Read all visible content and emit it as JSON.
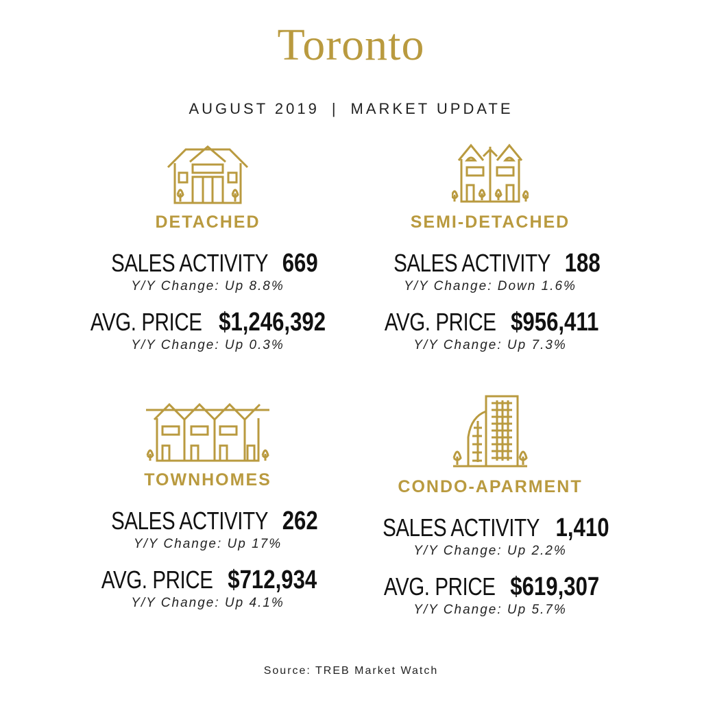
{
  "title": "Toronto",
  "subtitle": {
    "left": "AUGUST 2019",
    "separator": "|",
    "right": "MARKET UPDATE"
  },
  "accent_color": "#b99a3f",
  "sections": [
    {
      "icon": "detached-house-icon",
      "category": "DETACHED",
      "sales_label": "SALES ACTIVITY",
      "sales_value": "669",
      "sales_change": "Y/Y Change: Up 8.8%",
      "price_label": "AVG. PRICE",
      "price_value": "$1,246,392",
      "price_change": "Y/Y Change: Up 0.3%"
    },
    {
      "icon": "semi-detached-house-icon",
      "category": "SEMI-DETACHED",
      "sales_label": "SALES ACTIVITY",
      "sales_value": "188",
      "sales_change": "Y/Y Change: Down 1.6%",
      "price_label": "AVG. PRICE",
      "price_value": "$956,411",
      "price_change": "Y/Y Change: Up 7.3%"
    },
    {
      "icon": "townhomes-icon",
      "category": "TOWNHOMES",
      "sales_label": "SALES ACTIVITY",
      "sales_value": "262",
      "sales_change": "Y/Y Change: Up 17%",
      "price_label": "AVG. PRICE",
      "price_value": "$712,934",
      "price_change": "Y/Y Change: Up 4.1%"
    },
    {
      "icon": "condo-building-icon",
      "category": "CONDO-APARMENT",
      "sales_label": "SALES ACTIVITY",
      "sales_value": "1,410",
      "sales_change": "Y/Y Change: Up 2.2%",
      "price_label": "AVG. PRICE",
      "price_value": "$619,307",
      "price_change": "Y/Y Change: Up 5.7%"
    }
  ],
  "source": "Source: TREB Market Watch"
}
